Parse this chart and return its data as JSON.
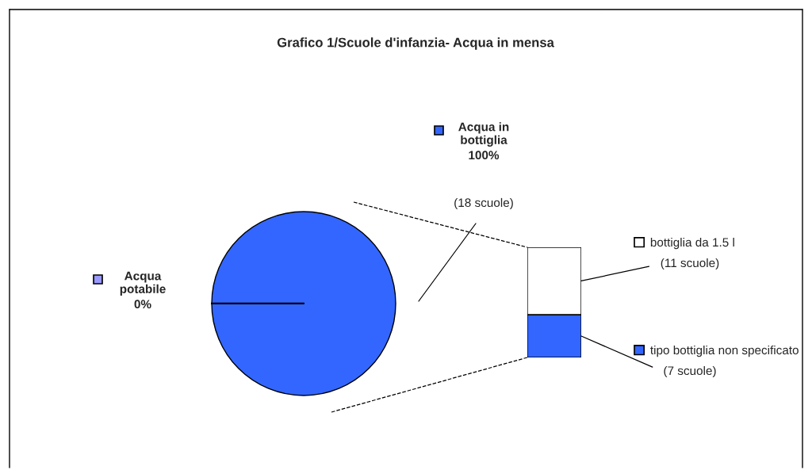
{
  "chart_data": [
    {
      "type": "pie",
      "title": "Grafico 1/Scuole d'infanzia- Acqua in mensa",
      "categories": [
        "Acqua potabile",
        "Acqua in bottiglia"
      ],
      "values": [
        0,
        100
      ],
      "colors": [
        "#9999ff",
        "#3366ff"
      ],
      "value_labels": [
        "0%",
        "100%"
      ],
      "annotations": [
        "(18 scuole)"
      ]
    },
    {
      "type": "bar",
      "stacked": true,
      "categories": [
        null
      ],
      "legend": "right",
      "series": [
        {
          "name": "tipo bottiglia non specificato",
          "color": "#3366ff",
          "values": [
            7
          ],
          "value_labels": [
            "(7 scuole)"
          ]
        },
        {
          "name": "bottiglia da 1.5 l",
          "color": "#ffffff",
          "values": [
            11
          ],
          "value_labels": [
            "(11 scuole)"
          ]
        }
      ]
    }
  ]
}
